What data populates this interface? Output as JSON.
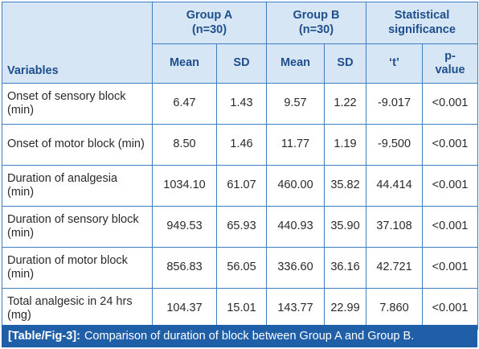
{
  "header": {
    "variables": "Variables",
    "group_a": "Group A\n(n=30)",
    "group_b": "Group B\n(n=30)",
    "significance": "Statistical\nsignificance",
    "mean_a": "Mean",
    "sd_a": "SD",
    "mean_b": "Mean",
    "sd_b": "SD",
    "t": "‘t’",
    "p": "p-\nvalue"
  },
  "rows": [
    {
      "variable": "Onset of sensory block (min)",
      "mean_a": "6.47",
      "sd_a": "1.43",
      "mean_b": "9.57",
      "sd_b": "1.22",
      "t": "-9.017",
      "p": "<0.001"
    },
    {
      "variable": "Onset of motor block (min)",
      "mean_a": "8.50",
      "sd_a": "1.46",
      "mean_b": "11.77",
      "sd_b": "1.19",
      "t": "-9.500",
      "p": "<0.001"
    },
    {
      "variable": "Duration of analgesia (min)",
      "mean_a": "1034.10",
      "sd_a": "61.07",
      "mean_b": "460.00",
      "sd_b": "35.82",
      "t": "44.414",
      "p": "<0.001"
    },
    {
      "variable": "Duration of sensory block (min)",
      "mean_a": "949.53",
      "sd_a": "65.93",
      "mean_b": "440.93",
      "sd_b": "35.90",
      "t": "37.108",
      "p": "<0.001"
    },
    {
      "variable": "Duration of motor block (min)",
      "mean_a": "856.83",
      "sd_a": "56.05",
      "mean_b": "336.60",
      "sd_b": "36.16",
      "t": "42.721",
      "p": "<0.001"
    },
    {
      "variable": "Total analgesic in 24 hrs (mg)",
      "mean_a": "104.37",
      "sd_a": "15.01",
      "mean_b": "143.77",
      "sd_b": "22.99",
      "t": "7.860",
      "p": "<0.001"
    }
  ],
  "caption": {
    "label": "[Table/Fig-3]:",
    "text": "Comparison of duration of block between Group A and Group B."
  }
}
